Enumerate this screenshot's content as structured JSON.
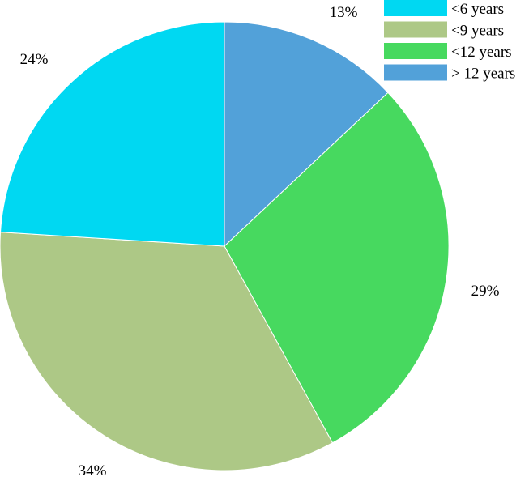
{
  "chart_data": {
    "type": "pie",
    "title": "",
    "categories": [
      "<6 years",
      "<9 years",
      "<12 years",
      "> 12 years"
    ],
    "values": [
      24,
      34,
      29,
      13
    ],
    "labels": [
      "24%",
      "34%",
      "29%",
      "13%"
    ],
    "colors": [
      "#00d8f2",
      "#adc886",
      "#47d95f",
      "#52a1d9"
    ],
    "legend": {
      "position": "top-right",
      "entries": [
        "<6 years",
        "<9 years",
        "<12 years",
        "> 12 years"
      ]
    },
    "slice_border": "#ffffff",
    "start": "12 o'clock",
    "direction": "clockwise",
    "slice_order": [
      "> 12 years",
      "<12 years",
      "<9 years",
      "<6 years"
    ]
  }
}
